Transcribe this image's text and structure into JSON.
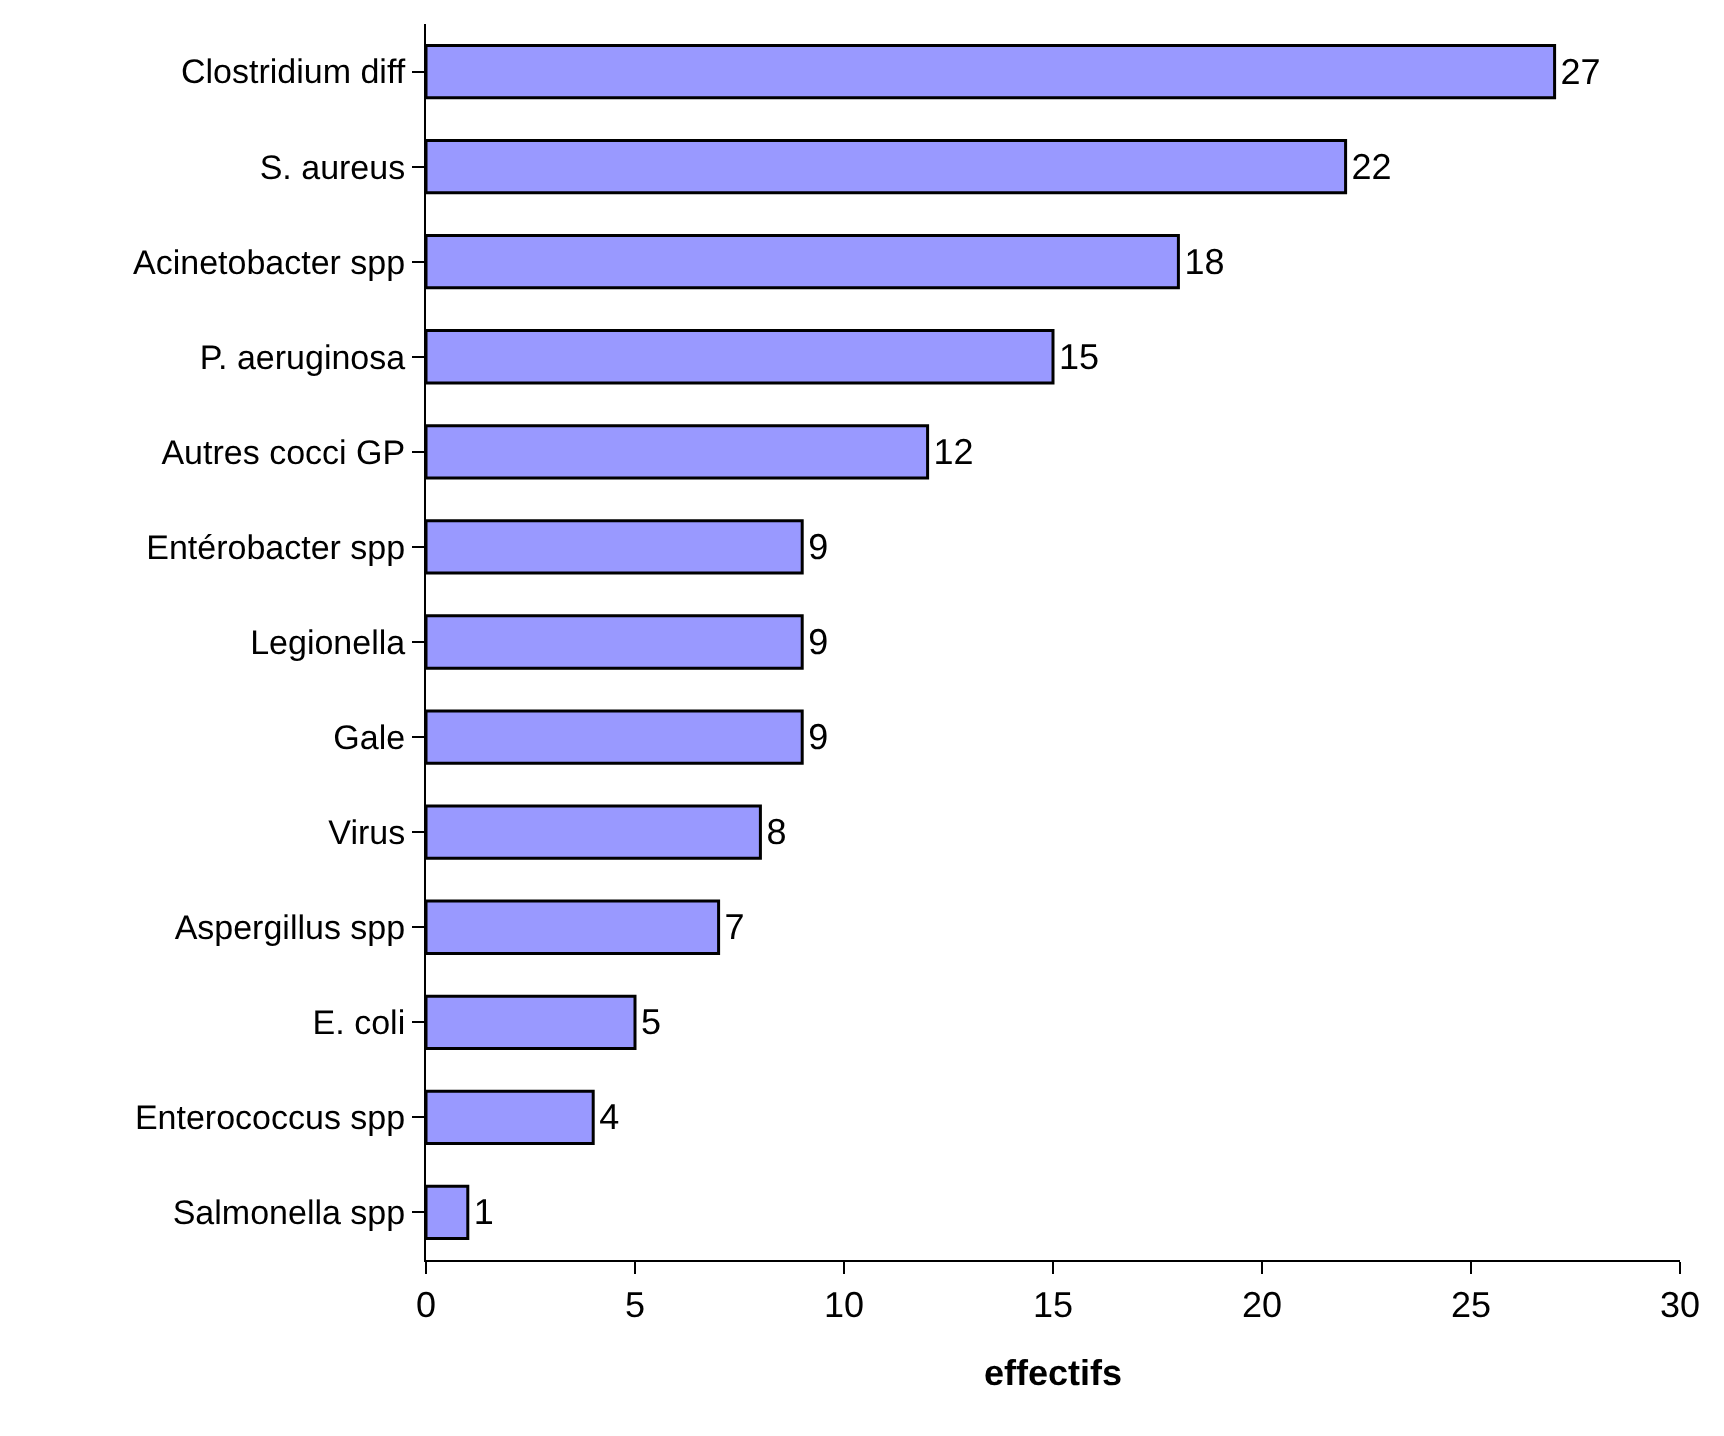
{
  "chart_data": {
    "type": "bar",
    "orientation": "horizontal",
    "xlabel": "effectifs",
    "categories": [
      "Clostridium diff",
      "S. aureus",
      "Acinetobacter spp",
      "P. aeruginosa",
      "Autres cocci GP",
      "Entérobacter spp",
      "Legionella",
      "Gale",
      "Virus",
      "Aspergillus spp",
      "E. coli",
      "Enterococcus spp",
      "Salmonella spp"
    ],
    "values": [
      27,
      22,
      18,
      15,
      12,
      9,
      9,
      9,
      8,
      7,
      5,
      4,
      1
    ],
    "color": "#9999ff",
    "xlim": [
      0,
      30
    ],
    "xticks": [
      0,
      5,
      10,
      15,
      20,
      25,
      30
    ],
    "data_labels": true
  }
}
